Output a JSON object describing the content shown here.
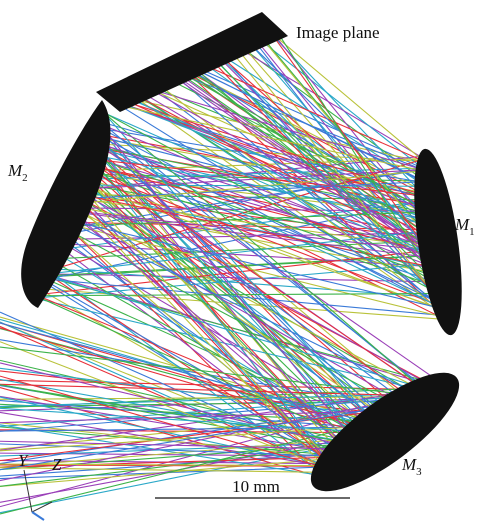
{
  "labels": {
    "image_plane": "Image plane",
    "m1": {
      "letter": "M",
      "sub": "1"
    },
    "m2": {
      "letter": "M",
      "sub": "2"
    },
    "m3": {
      "letter": "M",
      "sub": "3"
    },
    "axis_y": "Y",
    "axis_z": "Z",
    "scale": "10 mm"
  }
}
